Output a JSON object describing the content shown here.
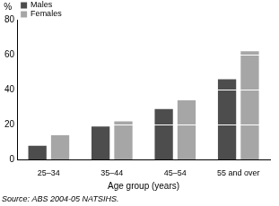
{
  "chart_data": {
    "type": "bar",
    "y_label": "%",
    "x_label": "Age group (years)",
    "source": "Source: ABS 2004-05 NATSIHS.",
    "categories": [
      "25–34",
      "35–44",
      "45–54",
      "55 and over"
    ],
    "series": [
      {
        "name": "Males",
        "color": "#4d4d4d",
        "values": [
          8,
          19,
          29,
          46
        ]
      },
      {
        "name": "Females",
        "color": "#a6a6a6",
        "values": [
          14,
          22,
          34,
          62
        ]
      }
    ],
    "ylim": [
      0,
      80
    ],
    "yticks": [
      0,
      20,
      40,
      60,
      80
    ],
    "grid": true,
    "legend": "top-left"
  }
}
